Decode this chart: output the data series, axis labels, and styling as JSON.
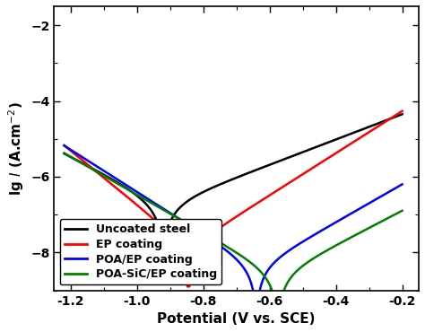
{
  "xlabel": "Potential (V vs. SCE)",
  "ylabel": "lg $I$ (A.cm$^{-2}$)",
  "xlim": [
    -1.25,
    -0.15
  ],
  "ylim": [
    -9.0,
    -1.5
  ],
  "yticks": [
    -8,
    -6,
    -4,
    -2
  ],
  "xticks": [
    -1.2,
    -1.0,
    -0.8,
    -0.6,
    -0.4,
    -0.2
  ],
  "series": [
    {
      "label": "Uncoated steel",
      "color": "#000000",
      "Ecorr": -0.92,
      "Icorr_log": -6.75,
      "ba": 0.3,
      "bc": 0.22,
      "xmin": -1.22,
      "xmax": -0.2
    },
    {
      "label": "EP coating",
      "color": "#ff0000",
      "Ecorr": -0.845,
      "Icorr_log": -7.85,
      "ba": 0.18,
      "bc": 0.14,
      "xmin": -1.22,
      "xmax": -0.2
    },
    {
      "label": "POA/EP coating",
      "color": "#0000ff",
      "Ecorr": -0.64,
      "Icorr_log": -8.4,
      "ba": 0.2,
      "bc": 0.18,
      "xmin": -1.22,
      "xmax": -0.2
    },
    {
      "label": "POA-SiC/EP coating",
      "color": "#008000",
      "Ecorr": -0.575,
      "Icorr_log": -8.6,
      "ba": 0.22,
      "bc": 0.2,
      "xmin": -1.22,
      "xmax": -0.2
    }
  ],
  "background_color": "#ffffff",
  "linewidth": 1.8
}
